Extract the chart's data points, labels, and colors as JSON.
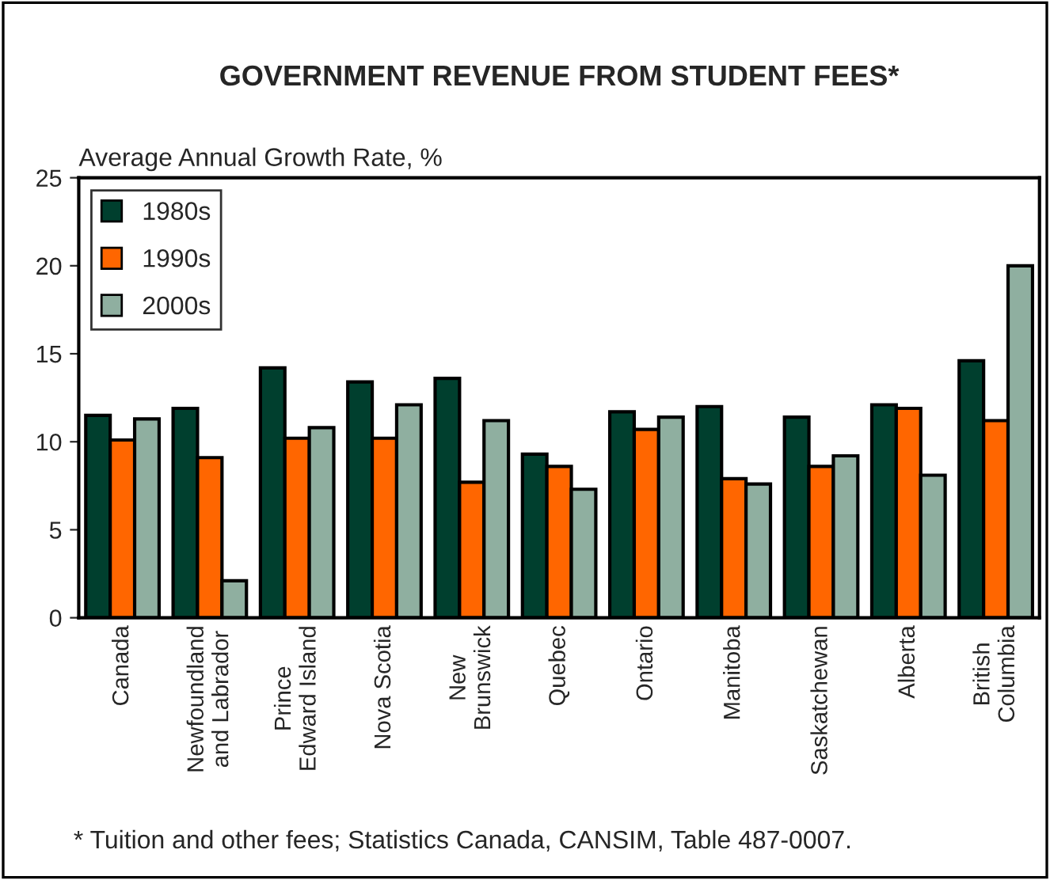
{
  "chart_data": {
    "type": "bar",
    "title": "GOVERNMENT REVENUE FROM STUDENT FEES*",
    "ylabel": "Average Annual Growth Rate, %",
    "categories": [
      "Canada",
      "Newfoundland\nand Labrador",
      "Prince\nEdward Island",
      "Nova Scotia",
      "New\nBrunswick",
      "Quebec",
      "Ontario",
      "Manitoba",
      "Saskatchewan",
      "Alberta",
      "British\nColumbia"
    ],
    "series": [
      {
        "name": "1980s",
        "color": "#003f2e",
        "values": [
          11.5,
          11.9,
          14.2,
          13.4,
          13.6,
          9.3,
          11.7,
          12.0,
          11.4,
          12.1,
          14.6
        ]
      },
      {
        "name": "1990s",
        "color": "#ff6600",
        "values": [
          10.1,
          9.1,
          10.2,
          10.2,
          7.7,
          8.6,
          10.7,
          7.9,
          8.6,
          11.9,
          11.2
        ]
      },
      {
        "name": "2000s",
        "color": "#8fafa0",
        "values": [
          11.3,
          2.1,
          10.8,
          12.1,
          11.2,
          7.3,
          11.4,
          7.6,
          9.2,
          8.1,
          20.0
        ]
      }
    ],
    "ylim": [
      0,
      25
    ],
    "yticks": [
      0,
      5,
      10,
      15,
      20,
      25
    ],
    "legend": "top left",
    "grid": false,
    "annotations": [
      "* Tuition and other fees; Statistics Canada, CANSIM, Table 487-0007."
    ]
  }
}
